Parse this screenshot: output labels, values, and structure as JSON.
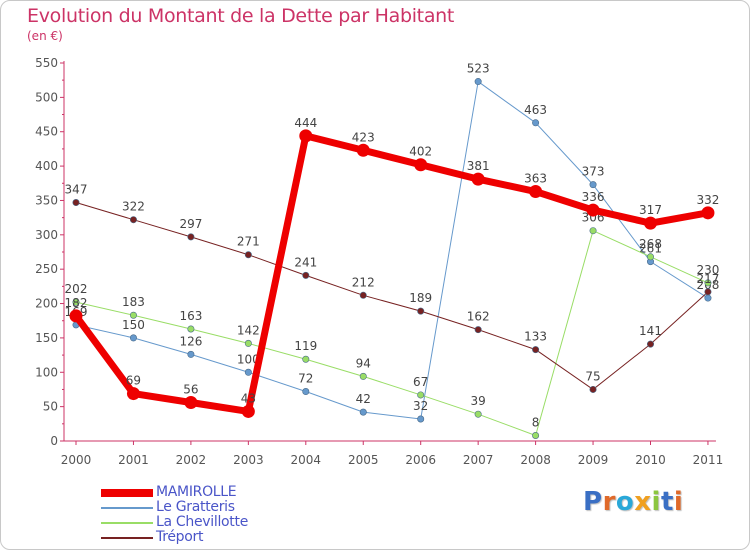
{
  "title": "Evolution du Montant de la Dette par Habitant",
  "subtitle": "(en €)",
  "brand": {
    "text": "Proxiti",
    "letters": [
      {
        "ch": "P",
        "color": "#3a6fc4"
      },
      {
        "ch": "r",
        "color": "#e06a2a"
      },
      {
        "ch": "o",
        "color": "#2aa8d8"
      },
      {
        "ch": "x",
        "color": "#f0a020"
      },
      {
        "ch": "i",
        "color": "#8cc63f"
      },
      {
        "ch": "t",
        "color": "#3a6fc4"
      },
      {
        "ch": "i",
        "color": "#e06a2a"
      }
    ]
  },
  "chart_data": {
    "type": "line",
    "title": "Evolution du Montant de la Dette par Habitant",
    "ylabel": "(en €)",
    "x": [
      "2000",
      "2001",
      "2002",
      "2003",
      "2004",
      "2005",
      "2006",
      "2007",
      "2008",
      "2009",
      "2010",
      "2011"
    ],
    "ylim": [
      0,
      550
    ],
    "yticks": [
      0,
      50,
      100,
      150,
      200,
      250,
      300,
      350,
      400,
      450,
      500,
      550
    ],
    "grid": false,
    "legend": "bottom-left",
    "series": [
      {
        "name": "MAMIROLLE",
        "color": "#ee0000",
        "width": 7,
        "values": [
          182,
          69,
          56,
          43,
          444,
          423,
          402,
          381,
          363,
          336,
          317,
          332
        ],
        "labels": [
          "182",
          "69",
          "56",
          "43",
          "444",
          "423",
          "402",
          "381",
          "363",
          "336",
          "317",
          "332"
        ]
      },
      {
        "name": "Le Gratteris",
        "color": "#6699cc",
        "width": 1,
        "values": [
          169,
          150,
          126,
          100,
          72,
          42,
          32,
          523,
          463,
          373,
          261,
          208
        ],
        "labels": [
          "169",
          "150",
          "126",
          "100",
          "72",
          "42",
          "32",
          "523",
          "463",
          "373",
          "261",
          "208"
        ]
      },
      {
        "name": "La Chevillotte",
        "color": "#99dd66",
        "width": 1,
        "values": [
          202,
          183,
          163,
          142,
          119,
          94,
          67,
          39,
          8,
          306,
          268,
          230
        ],
        "labels": [
          "202",
          "183",
          "163",
          "142",
          "119",
          "94",
          "67",
          "39",
          "8",
          "306",
          "268",
          "230"
        ]
      },
      {
        "name": "Tréport",
        "color": "#772222",
        "width": 1,
        "values": [
          347,
          322,
          297,
          271,
          241,
          212,
          189,
          162,
          133,
          75,
          141,
          217
        ],
        "labels": [
          "347",
          "322",
          "297",
          "271",
          "241",
          "212",
          "189",
          "162",
          "133",
          "75",
          "141",
          "217"
        ]
      }
    ]
  }
}
